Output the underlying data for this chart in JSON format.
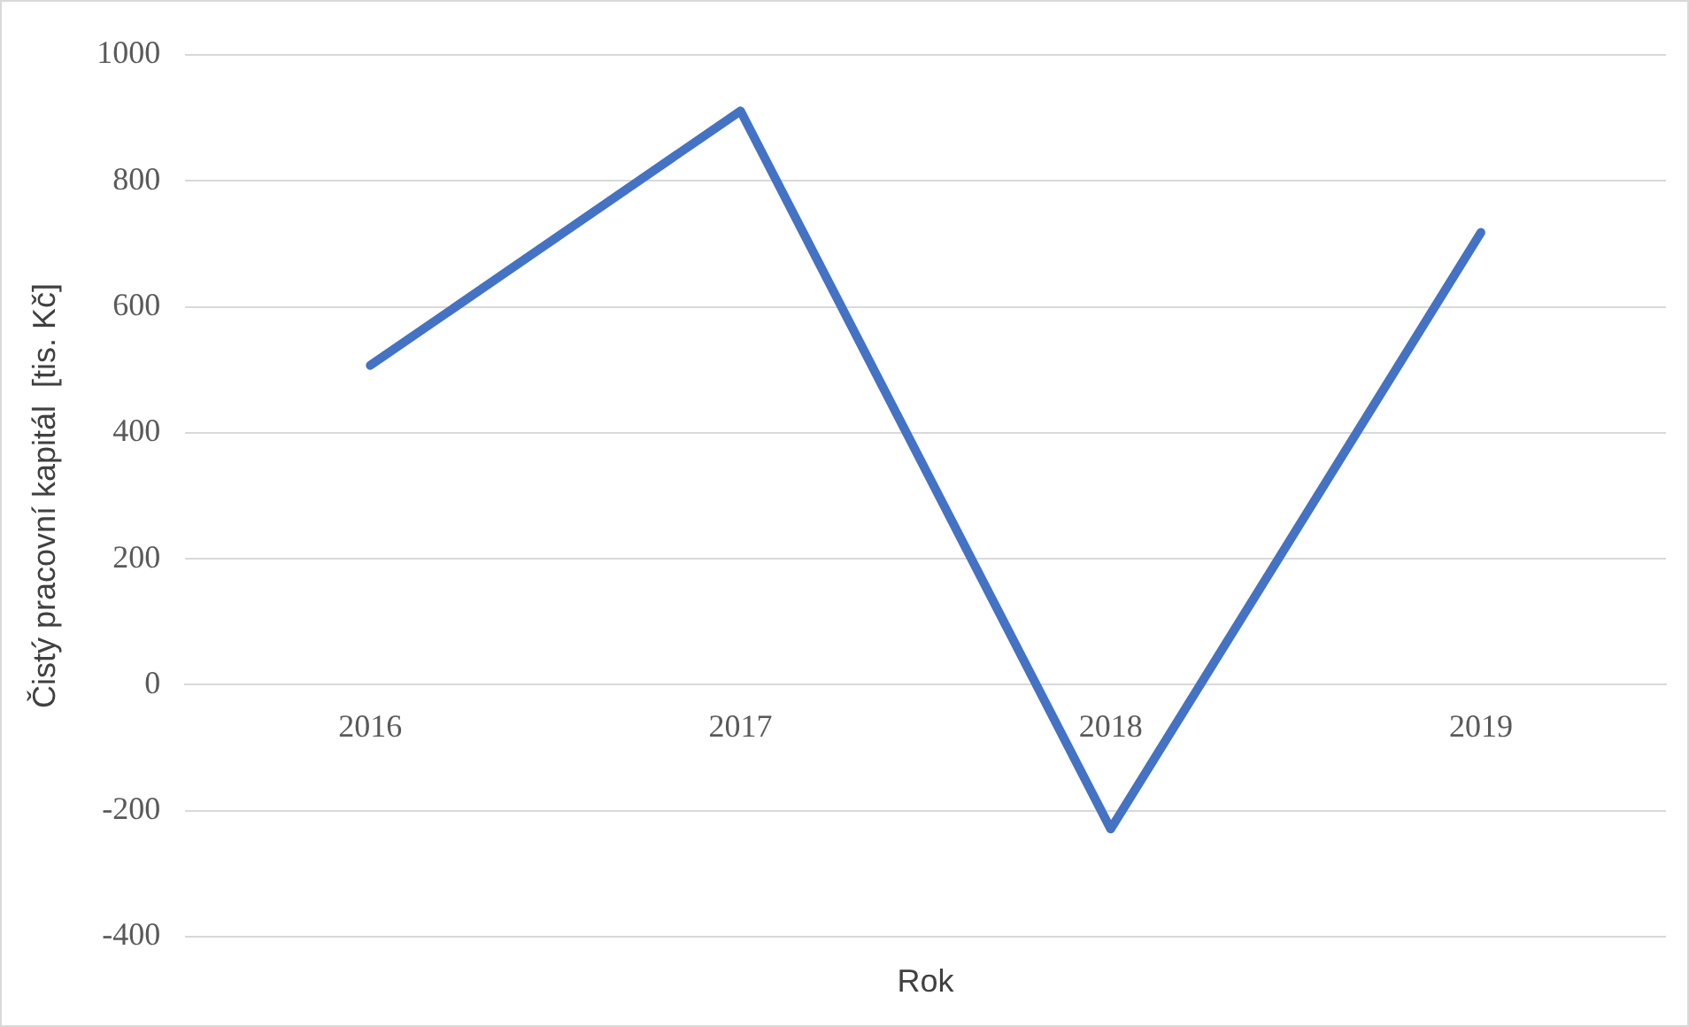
{
  "chart_data": {
    "type": "line",
    "xlabel": "Rok",
    "ylabel": "Čistý pracovní kapitál  [tis. Kč]",
    "categories": [
      "2016",
      "2017",
      "2018",
      "2019"
    ],
    "series": [
      {
        "color": "#4472c4",
        "values": [
          507,
          911,
          -229,
          718
        ]
      }
    ],
    "ylim": [
      -400,
      1000
    ],
    "yticks": [
      -400,
      -200,
      0,
      200,
      400,
      600,
      800,
      1000
    ],
    "grid": "y",
    "legend": false,
    "marker": "none",
    "line_style": "solid"
  }
}
